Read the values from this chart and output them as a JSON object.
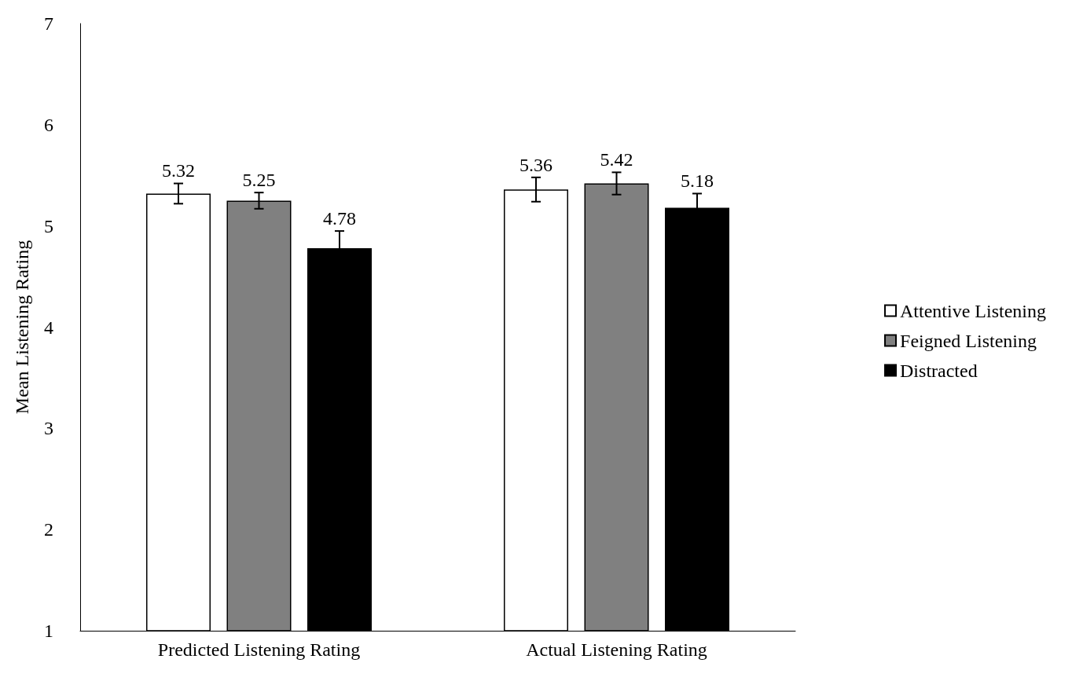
{
  "chart_data": {
    "type": "bar",
    "ylabel": "Mean Listening Rating",
    "categories": [
      "Predicted Listening Rating",
      "Actual Listening Rating"
    ],
    "series": [
      {
        "name": "Attentive Listening",
        "color": "#ffffff",
        "values": [
          5.32,
          5.36
        ],
        "errors": [
          0.1,
          0.12
        ]
      },
      {
        "name": "Feigned Listening",
        "color": "#808080",
        "values": [
          5.25,
          5.42
        ],
        "errors": [
          0.08,
          0.11
        ]
      },
      {
        "name": "Distracted",
        "color": "#000000",
        "values": [
          4.78,
          5.18
        ],
        "errors": [
          0.17,
          0.14
        ]
      }
    ],
    "ylim": [
      1,
      7
    ],
    "yticks": [
      1,
      2,
      3,
      4,
      5,
      6,
      7
    ],
    "grid": false,
    "legend": "right",
    "data_labels": true
  }
}
